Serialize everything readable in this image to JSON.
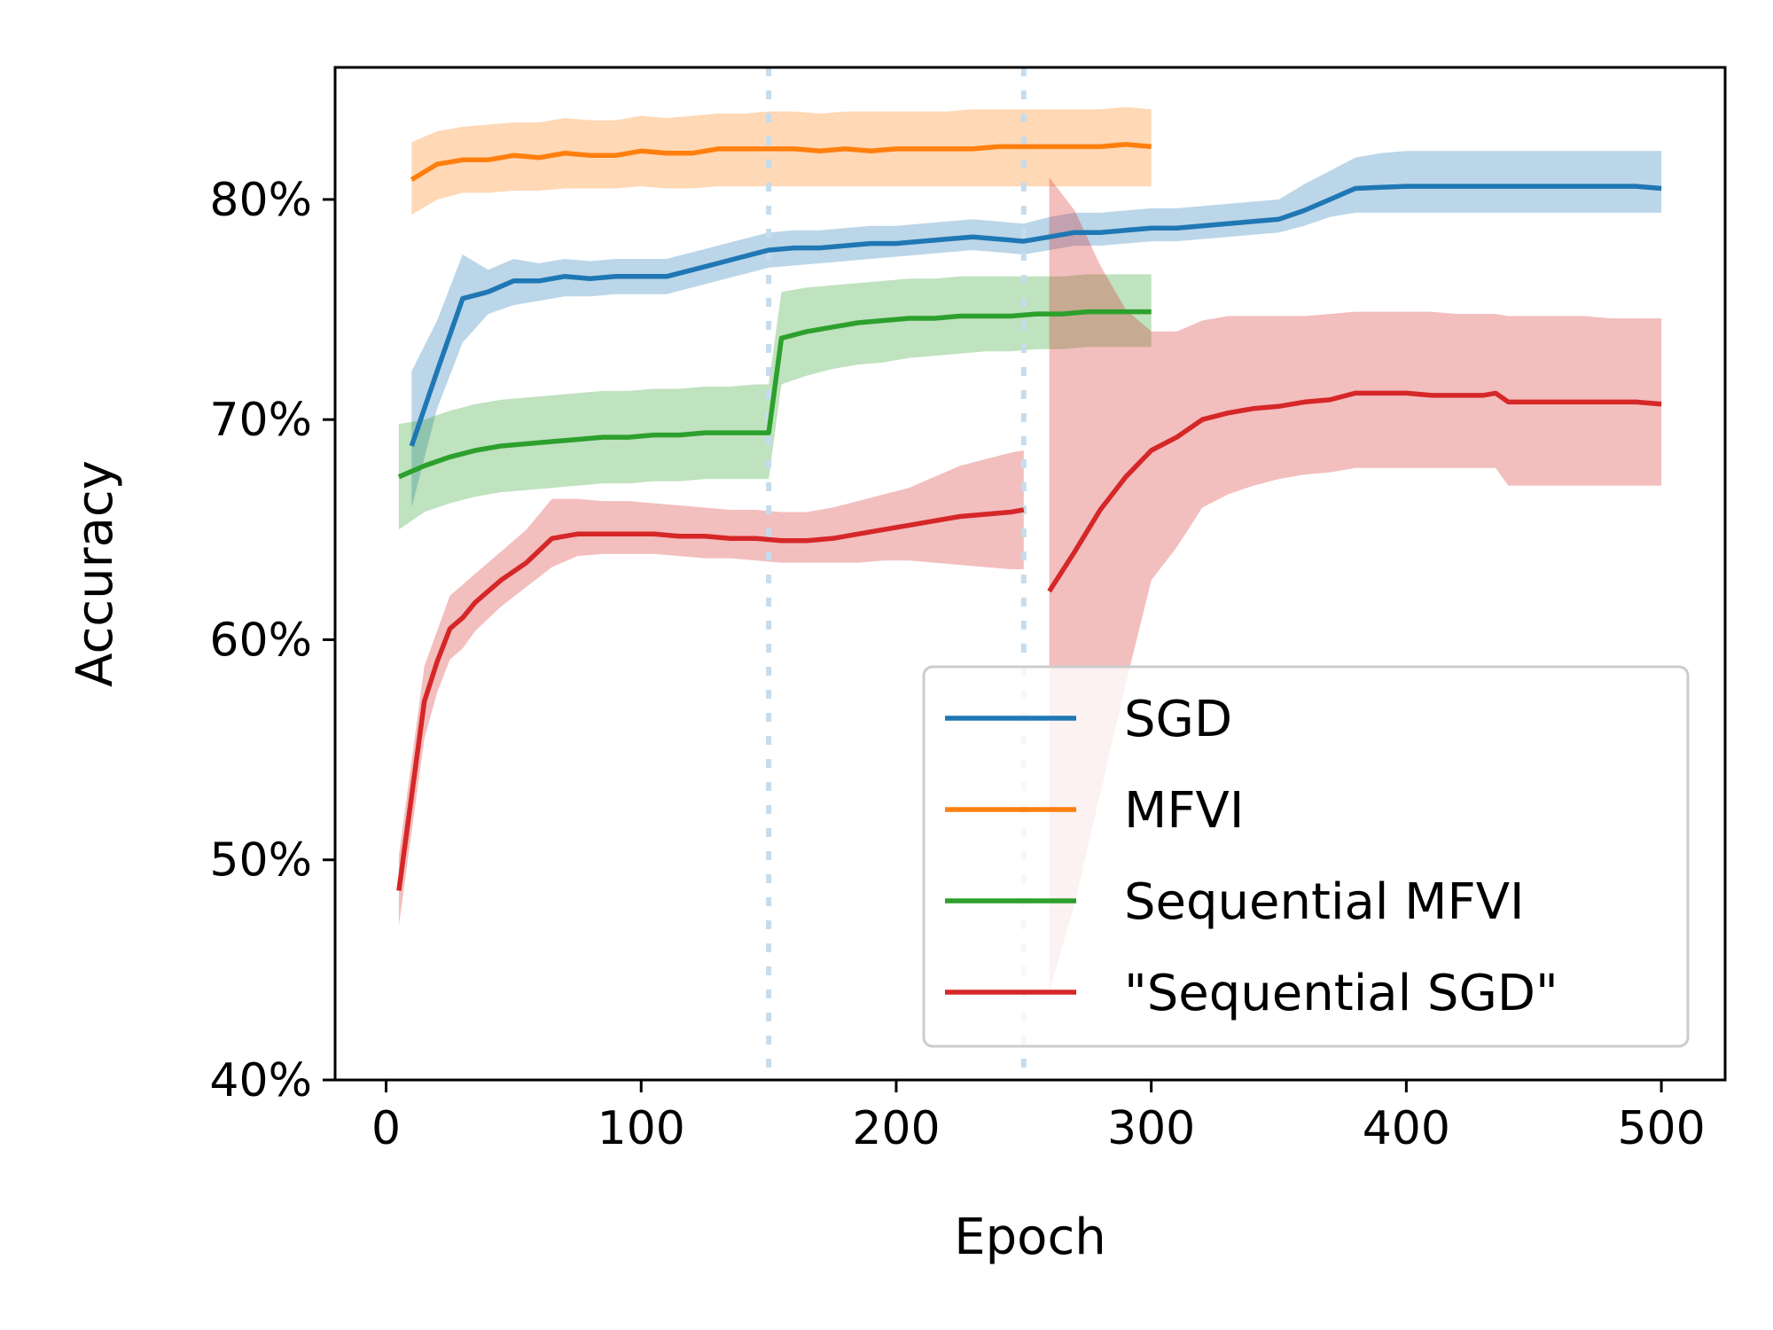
{
  "chart_data": {
    "type": "line",
    "xlabel": "Epoch",
    "ylabel": "Accuracy",
    "xlim": [
      -20,
      525
    ],
    "ylim": [
      40,
      86
    ],
    "xticks": [
      0,
      100,
      200,
      300,
      400,
      500
    ],
    "xtick_labels": [
      "0",
      "100",
      "200",
      "300",
      "400",
      "500"
    ],
    "yticks": [
      40,
      50,
      60,
      70,
      80
    ],
    "ytick_labels": [
      "40%",
      "50%",
      "60%",
      "70%",
      "80%"
    ],
    "grid": false,
    "legend_position": "lower-right",
    "vlines": [
      {
        "x": 150,
        "color": "#c6dcec",
        "style": "dotted"
      },
      {
        "x": 250,
        "color": "#c6dcec",
        "style": "dotted"
      }
    ],
    "series": [
      {
        "name": "SGD",
        "color": "#1f77b4",
        "segments": [
          {
            "x": [
              10,
              20,
              30,
              40,
              50,
              60,
              70,
              80,
              90,
              100,
              110,
              120,
              130,
              140,
              150,
              160,
              170,
              180,
              190,
              200,
              210,
              220,
              230,
              240,
              250,
              260,
              270,
              280,
              290,
              300,
              310,
              320,
              330,
              340,
              350,
              360,
              370,
              380,
              390,
              400,
              410,
              420,
              430,
              440,
              450,
              460,
              470,
              480,
              490,
              500
            ],
            "y": [
              68.8,
              72.2,
              75.5,
              75.8,
              76.3,
              76.3,
              76.5,
              76.4,
              76.5,
              76.5,
              76.5,
              76.8,
              77.1,
              77.4,
              77.7,
              77.8,
              77.8,
              77.9,
              78.0,
              78.0,
              78.1,
              78.2,
              78.3,
              78.2,
              78.1,
              78.3,
              78.5,
              78.5,
              78.6,
              78.7,
              78.7,
              78.8,
              78.9,
              79.0,
              79.1,
              79.5,
              80.0,
              80.5,
              80.55,
              80.6,
              80.6,
              80.6,
              80.6,
              80.6,
              80.6,
              80.6,
              80.6,
              80.6,
              80.6,
              80.5
            ],
            "lower": [
              66.0,
              70.5,
              73.5,
              74.8,
              75.2,
              75.4,
              75.6,
              75.6,
              75.7,
              75.7,
              75.7,
              76.0,
              76.3,
              76.6,
              76.9,
              77.0,
              77.1,
              77.2,
              77.3,
              77.4,
              77.5,
              77.6,
              77.7,
              77.6,
              77.5,
              77.7,
              77.9,
              77.9,
              78.0,
              78.1,
              78.1,
              78.2,
              78.3,
              78.4,
              78.5,
              78.8,
              79.2,
              79.4,
              79.4,
              79.4,
              79.4,
              79.4,
              79.4,
              79.4,
              79.4,
              79.4,
              79.4,
              79.4,
              79.4,
              79.4
            ],
            "upper": [
              72.2,
              74.5,
              77.5,
              76.8,
              77.3,
              77.1,
              77.3,
              77.2,
              77.3,
              77.3,
              77.3,
              77.6,
              77.9,
              78.2,
              78.5,
              78.6,
              78.6,
              78.7,
              78.8,
              78.8,
              78.9,
              79.0,
              79.1,
              79.0,
              78.9,
              79.2,
              79.4,
              79.4,
              79.5,
              79.6,
              79.6,
              79.7,
              79.8,
              79.9,
              80.0,
              80.7,
              81.3,
              81.9,
              82.1,
              82.2,
              82.2,
              82.2,
              82.2,
              82.2,
              82.2,
              82.2,
              82.2,
              82.2,
              82.2,
              82.2
            ]
          }
        ]
      },
      {
        "name": "MFVI",
        "color": "#ff7f0e",
        "segments": [
          {
            "x": [
              10,
              20,
              30,
              40,
              50,
              60,
              70,
              80,
              90,
              100,
              110,
              120,
              130,
              140,
              150,
              160,
              170,
              180,
              190,
              200,
              210,
              220,
              230,
              240,
              250,
              260,
              270,
              280,
              290,
              300
            ],
            "y": [
              80.9,
              81.6,
              81.8,
              81.8,
              82.0,
              81.9,
              82.1,
              82.0,
              82.0,
              82.2,
              82.1,
              82.1,
              82.3,
              82.3,
              82.3,
              82.3,
              82.2,
              82.3,
              82.2,
              82.3,
              82.3,
              82.3,
              82.3,
              82.4,
              82.4,
              82.4,
              82.4,
              82.4,
              82.5,
              82.4
            ],
            "lower": [
              79.3,
              80.0,
              80.3,
              80.3,
              80.4,
              80.4,
              80.5,
              80.5,
              80.5,
              80.6,
              80.5,
              80.5,
              80.6,
              80.6,
              80.6,
              80.6,
              80.6,
              80.6,
              80.6,
              80.6,
              80.6,
              80.6,
              80.6,
              80.6,
              80.6,
              80.6,
              80.6,
              80.6,
              80.6,
              80.6
            ],
            "upper": [
              82.6,
              83.1,
              83.3,
              83.4,
              83.5,
              83.5,
              83.7,
              83.6,
              83.6,
              83.8,
              83.7,
              83.8,
              83.9,
              83.9,
              84.0,
              84.0,
              83.9,
              84.0,
              84.0,
              84.0,
              84.0,
              84.0,
              84.1,
              84.1,
              84.1,
              84.1,
              84.1,
              84.1,
              84.2,
              84.1
            ]
          }
        ]
      },
      {
        "name": "Sequential MFVI",
        "color": "#2ca02c",
        "segments": [
          {
            "x": [
              5,
              15,
              25,
              35,
              45,
              55,
              65,
              75,
              85,
              95,
              105,
              115,
              125,
              135,
              145,
              150,
              155,
              165,
              175,
              185,
              195,
              205,
              215,
              225,
              235,
              245,
              255,
              265,
              275,
              285,
              295,
              300
            ],
            "y": [
              67.4,
              67.9,
              68.3,
              68.6,
              68.8,
              68.9,
              69.0,
              69.1,
              69.2,
              69.2,
              69.3,
              69.3,
              69.4,
              69.4,
              69.4,
              69.4,
              73.7,
              74.0,
              74.2,
              74.4,
              74.5,
              74.6,
              74.6,
              74.7,
              74.7,
              74.7,
              74.8,
              74.8,
              74.9,
              74.9,
              74.9,
              74.9
            ],
            "lower": [
              65.0,
              65.8,
              66.2,
              66.5,
              66.7,
              66.8,
              66.9,
              67.0,
              67.1,
              67.1,
              67.2,
              67.2,
              67.3,
              67.3,
              67.3,
              67.3,
              71.6,
              72.0,
              72.3,
              72.5,
              72.6,
              72.8,
              72.9,
              73.0,
              73.1,
              73.1,
              73.2,
              73.2,
              73.3,
              73.3,
              73.3,
              73.3
            ],
            "upper": [
              69.8,
              70.0,
              70.4,
              70.7,
              70.9,
              71.0,
              71.1,
              71.2,
              71.3,
              71.3,
              71.4,
              71.4,
              71.5,
              71.5,
              71.6,
              71.6,
              75.8,
              76.0,
              76.1,
              76.2,
              76.3,
              76.4,
              76.4,
              76.5,
              76.5,
              76.5,
              76.5,
              76.5,
              76.6,
              76.6,
              76.6,
              76.6
            ]
          }
        ]
      },
      {
        "name": "\"Sequential SGD\"",
        "color": "#d62728",
        "segments": [
          {
            "x": [
              5,
              15,
              20,
              25,
              30,
              35,
              45,
              55,
              65,
              75,
              85,
              95,
              105,
              115,
              125,
              135,
              145,
              155,
              165,
              175,
              185,
              195,
              205,
              215,
              225,
              235,
              245,
              250
            ],
            "y": [
              48.6,
              57.2,
              59.0,
              60.5,
              61.0,
              61.7,
              62.7,
              63.5,
              64.6,
              64.8,
              64.8,
              64.8,
              64.8,
              64.7,
              64.7,
              64.6,
              64.6,
              64.5,
              64.5,
              64.6,
              64.8,
              65.0,
              65.2,
              65.4,
              65.6,
              65.7,
              65.8,
              65.9
            ],
            "lower": [
              47.0,
              55.5,
              57.6,
              59.1,
              59.6,
              60.4,
              61.5,
              62.4,
              63.3,
              63.8,
              63.9,
              63.9,
              63.9,
              63.8,
              63.7,
              63.7,
              63.6,
              63.5,
              63.5,
              63.5,
              63.5,
              63.6,
              63.6,
              63.5,
              63.4,
              63.3,
              63.2,
              63.2
            ],
            "upper": [
              50.2,
              58.8,
              60.4,
              62.0,
              62.5,
              63.0,
              64.0,
              65.0,
              66.4,
              66.4,
              66.3,
              66.3,
              66.2,
              66.1,
              66.0,
              65.9,
              65.9,
              65.8,
              65.8,
              66.0,
              66.3,
              66.6,
              66.9,
              67.4,
              67.9,
              68.2,
              68.5,
              68.6
            ]
          },
          {
            "x": [
              260,
              270,
              280,
              290,
              300,
              310,
              320,
              330,
              340,
              350,
              360,
              370,
              380,
              390,
              400,
              410,
              420,
              430,
              435,
              440,
              450,
              460,
              470,
              480,
              490,
              500
            ],
            "y": [
              62.2,
              64.0,
              65.9,
              67.4,
              68.6,
              69.2,
              70.0,
              70.3,
              70.5,
              70.6,
              70.8,
              70.9,
              71.2,
              71.2,
              71.2,
              71.1,
              71.1,
              71.1,
              71.2,
              70.8,
              70.8,
              70.8,
              70.8,
              70.8,
              70.8,
              70.7
            ],
            "lower": [
              44.0,
              48.0,
              53.0,
              58.0,
              62.7,
              64.2,
              66.0,
              66.6,
              67.0,
              67.3,
              67.5,
              67.6,
              67.8,
              67.8,
              67.8,
              67.8,
              67.8,
              67.8,
              67.8,
              67.0,
              67.0,
              67.0,
              67.0,
              67.0,
              67.0,
              67.0
            ],
            "upper": [
              81.0,
              79.5,
              77.0,
              75.0,
              74.0,
              74.0,
              74.5,
              74.7,
              74.7,
              74.7,
              74.7,
              74.8,
              74.9,
              74.9,
              74.9,
              74.9,
              74.8,
              74.8,
              74.8,
              74.7,
              74.7,
              74.7,
              74.7,
              74.6,
              74.6,
              74.6
            ]
          }
        ]
      }
    ]
  }
}
